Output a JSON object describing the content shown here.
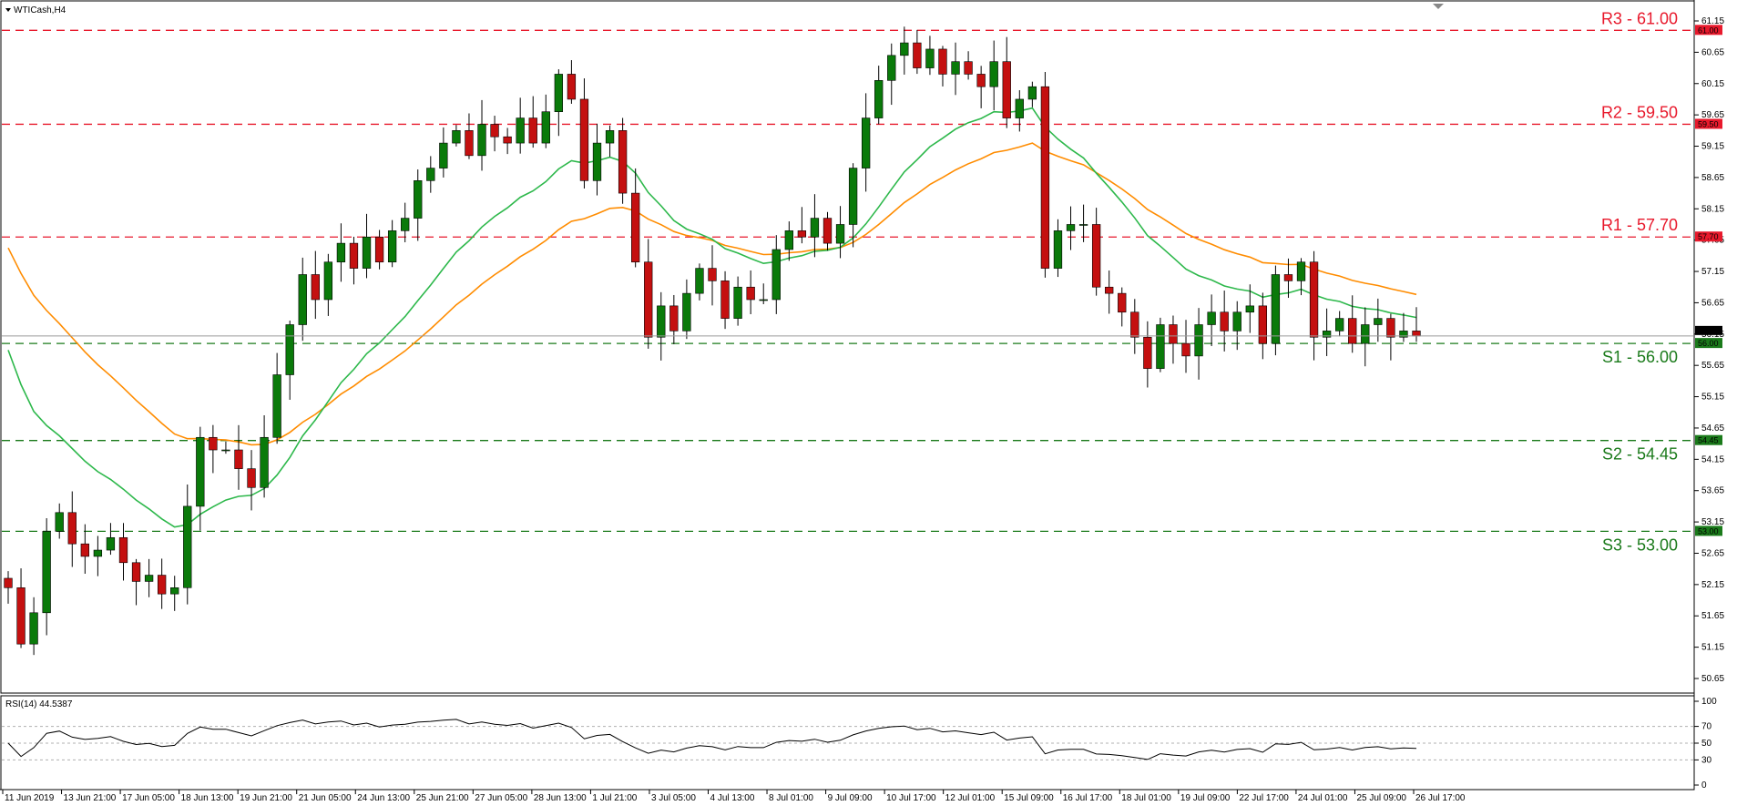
{
  "chart_data": [
    {
      "type": "candlestick",
      "title": "WTICash,H4",
      "ylim": [
        50.5,
        61.3
      ],
      "y_ticks": [
        "61.15",
        "60.65",
        "60.15",
        "59.65",
        "59.15",
        "58.65",
        "58.15",
        "57.65",
        "57.15",
        "56.65",
        "56.15",
        "55.65",
        "55.15",
        "54.65",
        "54.15",
        "53.65",
        "53.15",
        "52.65",
        "52.15",
        "51.65",
        "51.15",
        "50.65"
      ],
      "x_ticks": [
        "11 Jun 2019",
        "13 Jun 21:00",
        "17 Jun 05:00",
        "18 Jun 13:00",
        "19 Jun 21:00",
        "21 Jun 05:00",
        "24 Jun 13:00",
        "25 Jun 21:00",
        "27 Jun 05:00",
        "28 Jun 13:00",
        "1 Jul 21:00",
        "3 Jul 05:00",
        "4 Jul 13:00",
        "8 Jul 01:00",
        "9 Jul 09:00",
        "10 Jul 17:00",
        "12 Jul 01:00",
        "15 Jul 09:00",
        "16 Jul 17:00",
        "18 Jul 01:00",
        "19 Jul 09:00",
        "22 Jul 17:00",
        "24 Jul 01:00",
        "25 Jul 09:00",
        "26 Jul 17:00"
      ],
      "current_price": "56.12",
      "levels": [
        {
          "label": "R3 - 61.00",
          "value": 61.0,
          "tag": "61.00",
          "color": "#e8192c"
        },
        {
          "label": "R2 - 59.50",
          "value": 59.5,
          "tag": "59.50",
          "color": "#e8192c"
        },
        {
          "label": "R1 - 57.70",
          "value": 57.7,
          "tag": "57.70",
          "color": "#e8192c"
        },
        {
          "label": "S1 - 56.00",
          "value": 56.0,
          "tag": "56.00",
          "color": "#1a7a1a"
        },
        {
          "label": "S2 - 54.45",
          "value": 54.45,
          "tag": "54.45",
          "color": "#1a7a1a"
        },
        {
          "label": "S3 - 53.00",
          "value": 53.0,
          "tag": "53.00",
          "color": "#1a7a1a"
        }
      ],
      "closes": [
        52.1,
        51.2,
        51.7,
        53.0,
        53.3,
        52.8,
        52.6,
        52.7,
        52.9,
        52.5,
        52.2,
        52.3,
        52.0,
        52.1,
        53.4,
        54.5,
        54.3,
        54.3,
        54.0,
        53.7,
        54.5,
        55.5,
        56.3,
        57.1,
        56.7,
        57.3,
        57.6,
        57.2,
        57.7,
        57.3,
        57.8,
        58.0,
        58.6,
        58.8,
        59.2,
        59.4,
        59.0,
        59.5,
        59.3,
        59.2,
        59.6,
        59.2,
        59.7,
        60.3,
        59.9,
        58.6,
        59.2,
        59.4,
        58.4,
        57.3,
        56.1,
        56.6,
        56.2,
        56.8,
        57.2,
        57.0,
        56.4,
        56.9,
        56.7,
        56.7,
        57.5,
        57.8,
        57.7,
        58.0,
        57.6,
        57.9,
        58.8,
        59.6,
        60.2,
        60.6,
        60.8,
        60.4,
        60.7,
        60.3,
        60.5,
        60.3,
        60.1,
        60.5,
        59.6,
        59.9,
        60.1,
        57.2,
        57.8,
        57.9,
        57.9,
        56.9,
        56.8,
        56.5,
        56.1,
        55.6,
        56.3,
        56.0,
        55.8,
        56.3,
        56.5,
        56.2,
        56.5,
        56.6,
        56.0,
        57.1,
        57.0,
        57.3,
        56.1,
        56.2,
        56.4,
        56.0,
        56.3,
        56.4,
        56.1,
        56.2,
        56.12
      ],
      "rsi": {
        "label": "RSI(14) 44.5387",
        "ylim": [
          0,
          100
        ],
        "y_ticks": [
          "100",
          "70",
          "50",
          "30",
          "0"
        ],
        "levels": [
          70,
          50,
          30
        ]
      }
    }
  ]
}
